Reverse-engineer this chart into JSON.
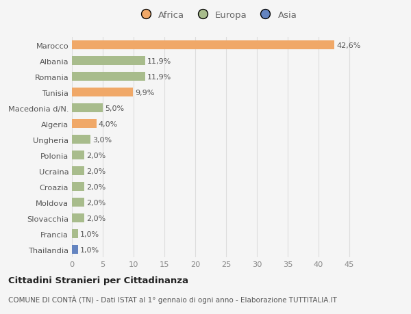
{
  "categories": [
    "Marocco",
    "Albania",
    "Romania",
    "Tunisia",
    "Macedonia d/N.",
    "Algeria",
    "Ungheria",
    "Polonia",
    "Ucraina",
    "Croazia",
    "Moldova",
    "Slovacchia",
    "Francia",
    "Thailandia"
  ],
  "values": [
    42.6,
    11.9,
    11.9,
    9.9,
    5.0,
    4.0,
    3.0,
    2.0,
    2.0,
    2.0,
    2.0,
    2.0,
    1.0,
    1.0
  ],
  "colors": [
    "#F0A868",
    "#A8BC8C",
    "#A8BC8C",
    "#F0A868",
    "#A8BC8C",
    "#F0A868",
    "#A8BC8C",
    "#A8BC8C",
    "#A8BC8C",
    "#A8BC8C",
    "#A8BC8C",
    "#A8BC8C",
    "#A8BC8C",
    "#6484C0"
  ],
  "labels": [
    "42,6%",
    "11,9%",
    "11,9%",
    "9,9%",
    "5,0%",
    "4,0%",
    "3,0%",
    "2,0%",
    "2,0%",
    "2,0%",
    "2,0%",
    "2,0%",
    "1,0%",
    "1,0%"
  ],
  "legend_labels": [
    "Africa",
    "Europa",
    "Asia"
  ],
  "legend_colors": [
    "#F0A868",
    "#A8BC8C",
    "#6484C0"
  ],
  "xlim": [
    0,
    47
  ],
  "xticks": [
    0,
    5,
    10,
    15,
    20,
    25,
    30,
    35,
    40,
    45
  ],
  "title1": "Cittadini Stranieri per Cittadinanza",
  "title2": "COMUNE DI CONTÀ (TN) - Dati ISTAT al 1° gennaio di ogni anno - Elaborazione TUTTITALIA.IT",
  "bg_color": "#F5F5F5",
  "bar_height": 0.55,
  "label_fontsize": 8.0,
  "ytick_fontsize": 8.2,
  "xtick_fontsize": 8.2
}
